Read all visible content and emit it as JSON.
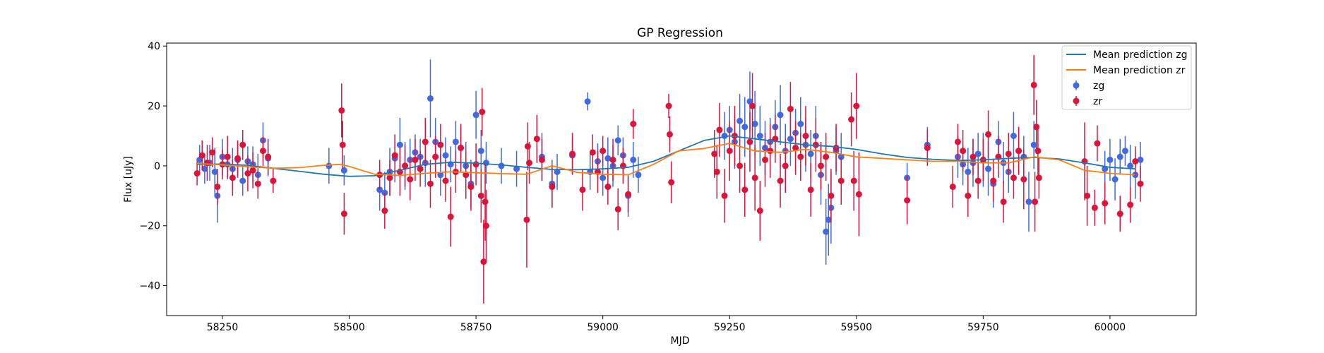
{
  "chart_data": {
    "type": "scatter",
    "title": "GP Regression",
    "xlabel": "MJD",
    "ylabel": "Flux [uJy]",
    "xlim": [
      58140,
      60170
    ],
    "ylim": [
      -50,
      41
    ],
    "xticks": [
      58250,
      58500,
      58750,
      59000,
      59250,
      59500,
      59750,
      60000
    ],
    "yticks": [
      -40,
      -20,
      0,
      20,
      40
    ],
    "ytick_labels": [
      "−40",
      "−20",
      "0",
      "20",
      "40"
    ],
    "legend_position": "top-right",
    "colors": {
      "zg_line": "#1f77b4",
      "zr_line": "#ff7f0e",
      "zg_points": "#4169e1",
      "zr_points": "#dc143c"
    },
    "series": [
      {
        "name": "Mean prediction zg",
        "kind": "line",
        "x": [
          58200,
          58250,
          58300,
          58350,
          58400,
          58450,
          58500,
          58550,
          58600,
          58650,
          58700,
          58750,
          58800,
          58850,
          58900,
          58950,
          59000,
          59050,
          59100,
          59150,
          59200,
          59250,
          59300,
          59350,
          59400,
          59450,
          59500,
          59550,
          59600,
          59650,
          59700,
          59750,
          59800,
          59850,
          59900,
          59950,
          60000,
          60050
        ],
        "y": [
          0.5,
          0.6,
          0.2,
          -0.8,
          -1.8,
          -2.8,
          -3.5,
          -3.3,
          -1.5,
          0.5,
          1.2,
          0.9,
          0.3,
          -0.5,
          -1.2,
          -1.3,
          -1.0,
          -0.5,
          1.5,
          5.0,
          8.5,
          10.0,
          9.0,
          8.0,
          7.0,
          6.5,
          5.5,
          4.0,
          2.8,
          2.2,
          1.8,
          2.0,
          2.5,
          2.8,
          2.3,
          1.0,
          -0.5,
          -1.0
        ]
      },
      {
        "name": "Mean prediction zr",
        "kind": "line",
        "x": [
          58200,
          58250,
          58300,
          58350,
          58400,
          58450,
          58480,
          58500,
          58550,
          58600,
          58650,
          58700,
          58750,
          58800,
          58850,
          58900,
          58950,
          59000,
          59050,
          59100,
          59150,
          59200,
          59250,
          59300,
          59350,
          59400,
          59450,
          59500,
          59550,
          59600,
          59650,
          59700,
          59750,
          59800,
          59850,
          59900,
          59950,
          60000,
          60050
        ],
        "y": [
          0.8,
          0.3,
          -0.3,
          -0.8,
          -0.6,
          0.2,
          0.5,
          -0.2,
          -2.8,
          -3.2,
          -2.5,
          -2.0,
          -2.3,
          -2.6,
          -2.8,
          0.0,
          -2.2,
          -2.8,
          -3.0,
          0.5,
          5.0,
          5.8,
          7.5,
          5.0,
          4.5,
          5.5,
          4.5,
          3.0,
          2.5,
          2.0,
          1.5,
          1.5,
          1.0,
          1.0,
          3.0,
          2.0,
          -1.5,
          -2.5,
          -3.0
        ]
      },
      {
        "name": "zg",
        "kind": "errorbar",
        "x": [
          58205,
          58215,
          58225,
          58235,
          58240,
          58250,
          58260,
          58270,
          58280,
          58290,
          58300,
          58310,
          58320,
          58330,
          58340,
          58460,
          58490,
          58560,
          58570,
          58580,
          58590,
          58600,
          58610,
          58620,
          58630,
          58640,
          58650,
          58660,
          58670,
          58680,
          58690,
          58700,
          58710,
          58720,
          58730,
          58740,
          58750,
          58760,
          58770,
          58800,
          58830,
          58880,
          58900,
          58910,
          58940,
          58970,
          58975,
          58990,
          59000,
          59010,
          59020,
          59030,
          59040,
          59050,
          59060,
          59070,
          59240,
          59250,
          59260,
          59270,
          59280,
          59290,
          59300,
          59310,
          59320,
          59330,
          59340,
          59350,
          59360,
          59370,
          59380,
          59390,
          59400,
          59410,
          59420,
          59430,
          59440,
          59445,
          59450,
          59460,
          59470,
          59600,
          59640,
          59700,
          59710,
          59720,
          59730,
          59740,
          59750,
          59760,
          59770,
          59780,
          59790,
          59800,
          59810,
          59820,
          59830,
          59840,
          59850,
          59990,
          60000,
          60010,
          60020,
          60030,
          60040,
          60050,
          60060
        ],
        "y": [
          2.0,
          -1.0,
          1.0,
          -2.0,
          -10.0,
          3.0,
          0.5,
          -1.0,
          2.0,
          -5.0,
          1.5,
          0.5,
          -3.0,
          8.5,
          2.5,
          0.0,
          -1.5,
          -8.0,
          -9.0,
          -2.0,
          2.5,
          7.0,
          0.0,
          2.0,
          4.5,
          3.0,
          1.0,
          22.5,
          8.0,
          -3.0,
          3.5,
          0.5,
          8.0,
          6.0,
          0.0,
          -6.0,
          17.0,
          5.0,
          1.0,
          0.0,
          -1.0,
          3.0,
          -6.0,
          -2.0,
          3.5,
          21.5,
          -2.0,
          1.5,
          -4.0,
          2.5,
          0.0,
          8.5,
          3.5,
          -10.0,
          2.0,
          -3.0,
          10.0,
          12.0,
          8.0,
          15.0,
          13.0,
          21.5,
          14.0,
          10.0,
          6.0,
          8.0,
          13.0,
          17.0,
          5.0,
          9.0,
          11.0,
          14.0,
          7.0,
          4.0,
          10.0,
          -3.0,
          -22.0,
          -18.0,
          -14.0,
          5.0,
          3.0,
          -4.0,
          7.0,
          3.0,
          0.5,
          -2.0,
          1.0,
          4.0,
          2.0,
          -1.0,
          -6.0,
          8.0,
          1.0,
          -2.0,
          10.0,
          5.0,
          3.0,
          -12.0,
          7.0,
          -1.0,
          2.0,
          -4.5,
          3.0,
          5.0,
          0.0,
          -3.0,
          2.0
        ],
        "err": [
          5,
          5,
          6,
          8,
          9,
          6,
          5,
          7,
          6,
          5,
          5,
          6,
          7,
          6,
          6,
          6,
          5,
          7,
          7,
          8,
          8,
          9,
          8,
          7,
          6,
          6,
          8,
          13,
          8,
          7,
          6,
          6,
          7,
          7,
          8,
          8,
          8,
          7,
          7,
          6,
          6,
          8,
          8,
          6,
          6,
          3,
          6,
          6,
          6,
          7,
          7,
          5,
          6,
          7,
          6,
          6,
          8,
          8,
          9,
          9,
          10,
          10,
          11,
          10,
          9,
          8,
          9,
          10,
          9,
          9,
          8,
          9,
          9,
          8,
          10,
          10,
          11,
          12,
          12,
          8,
          8,
          5,
          6,
          7,
          7,
          8,
          8,
          7,
          9,
          9,
          8,
          7,
          7,
          7,
          8,
          8,
          7,
          10,
          8,
          6,
          7,
          7,
          6,
          5,
          7,
          8,
          6
        ],
        "color": "#4169e1"
      },
      {
        "name": "zr",
        "kind": "errorbar",
        "x": [
          58200,
          58210,
          58220,
          58230,
          58240,
          58250,
          58260,
          58270,
          58280,
          58290,
          58300,
          58310,
          58320,
          58330,
          58340,
          58350,
          58485,
          58487,
          58490,
          58560,
          58570,
          58580,
          58590,
          58600,
          58610,
          58620,
          58630,
          58640,
          58650,
          58660,
          58670,
          58680,
          58690,
          58700,
          58710,
          58720,
          58730,
          58740,
          58750,
          58760,
          58762,
          58765,
          58768,
          58770,
          58850,
          58852,
          58855,
          58870,
          58880,
          58900,
          58940,
          58960,
          58980,
          58990,
          59000,
          59010,
          59020,
          59030,
          59040,
          59050,
          59060,
          59130,
          59132,
          59135,
          59220,
          59225,
          59230,
          59240,
          59250,
          59260,
          59270,
          59280,
          59290,
          59295,
          59300,
          59310,
          59320,
          59330,
          59340,
          59350,
          59360,
          59370,
          59380,
          59390,
          59400,
          59410,
          59420,
          59430,
          59440,
          59450,
          59460,
          59470,
          59490,
          59495,
          59500,
          59505,
          59600,
          59640,
          59690,
          59700,
          59710,
          59720,
          59730,
          59740,
          59750,
          59760,
          59770,
          59780,
          59790,
          59800,
          59810,
          59820,
          59830,
          59850,
          59852,
          59855,
          59858,
          59860,
          59950,
          59955,
          59970,
          59975,
          59990,
          60020,
          60040,
          60050,
          60060
        ],
        "y": [
          -2.5,
          3.5,
          1.0,
          4.5,
          -7.0,
          0.5,
          3.0,
          -4.0,
          2.5,
          7.0,
          -2.5,
          -1.5,
          -6.0,
          5.0,
          3.0,
          -5.0,
          18.5,
          7.0,
          -16.0,
          -3.0,
          -15.0,
          -4.0,
          3.5,
          -2.0,
          0.0,
          -4.5,
          2.0,
          -1.0,
          8.0,
          -6.0,
          3.0,
          7.0,
          -5.0,
          -17.0,
          -2.0,
          6.0,
          -3.0,
          -7.0,
          0.5,
          -10.0,
          18.0,
          -32.0,
          -12.0,
          -20.0,
          -18.0,
          6.5,
          1.0,
          9.0,
          2.0,
          -7.0,
          4.0,
          -8.0,
          4.5,
          -2.0,
          5.0,
          -7.0,
          2.0,
          -14.5,
          0.0,
          -9.5,
          14.0,
          20.0,
          10.5,
          -5.5,
          4.0,
          -2.0,
          12.0,
          -10.0,
          5.0,
          10.0,
          0.0,
          -8.0,
          8.0,
          20.0,
          -4.0,
          -15.0,
          2.0,
          5.0,
          9.0,
          -5.0,
          0.0,
          19.0,
          6.0,
          3.0,
          10.0,
          -8.0,
          7.0,
          0.0,
          3.0,
          -10.0,
          6.0,
          -5.0,
          15.5,
          -5.0,
          20.0,
          -9.5,
          -11.5,
          6.0,
          -7.0,
          8.0,
          5.0,
          -10.0,
          3.0,
          -5.0,
          2.0,
          10.5,
          -5.0,
          3.0,
          -12.0,
          4.0,
          -4.0,
          5.0,
          -4.5,
          27.0,
          -12.0,
          13.0,
          5.0,
          -4.0,
          1.5,
          -10.0,
          -14.0,
          7.5,
          -12.5,
          -16.0,
          -13.0,
          1.5,
          -6.0
        ],
        "err": [
          4,
          5,
          6,
          5,
          6,
          5,
          7,
          6,
          6,
          5,
          6,
          6,
          5,
          5,
          6,
          4,
          9,
          8,
          7,
          5,
          6,
          6,
          7,
          8,
          7,
          7,
          7,
          6,
          8,
          8,
          7,
          7,
          7,
          10,
          7,
          8,
          8,
          8,
          7,
          9,
          8,
          14,
          13,
          12,
          16,
          8,
          7,
          8,
          7,
          7,
          7,
          7,
          6,
          7,
          5,
          6,
          7,
          7,
          6,
          6,
          5,
          4,
          6,
          7,
          8,
          9,
          9,
          9,
          10,
          10,
          9,
          9,
          10,
          11,
          11,
          10,
          9,
          9,
          8,
          9,
          9,
          9,
          9,
          8,
          10,
          9,
          9,
          8,
          8,
          9,
          8,
          8,
          9,
          10,
          11,
          14,
          8,
          6,
          7,
          6,
          7,
          7,
          6,
          6,
          7,
          8,
          7,
          7,
          7,
          7,
          7,
          8,
          10,
          10,
          10,
          9,
          8,
          7,
          13,
          10,
          6,
          6,
          7,
          6,
          6,
          5,
          6
        ],
        "color": "#dc143c"
      }
    ]
  }
}
